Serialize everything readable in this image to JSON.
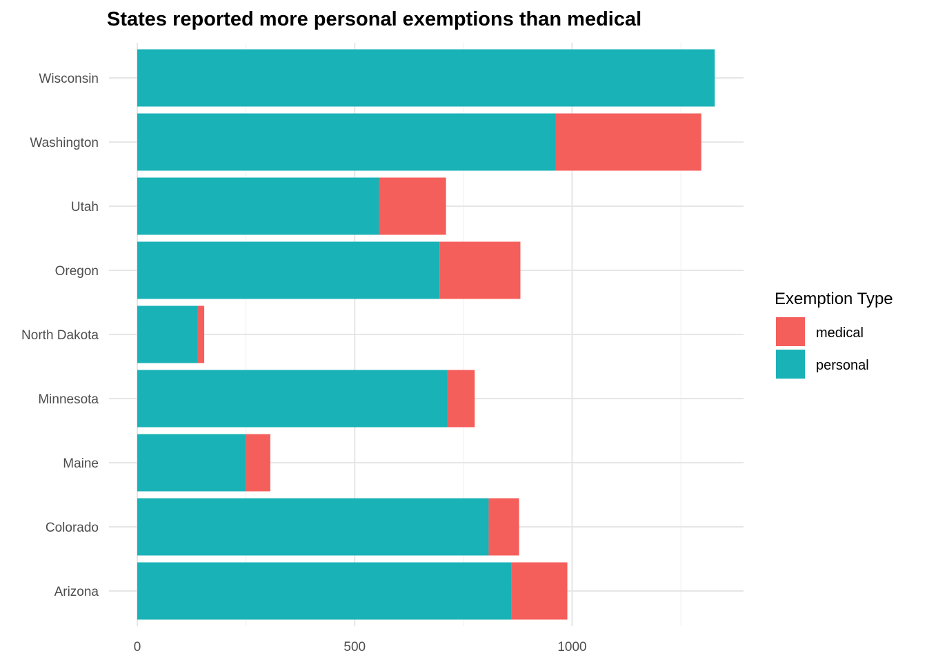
{
  "chart_data": {
    "type": "bar",
    "orientation": "horizontal",
    "stacked": true,
    "title": "States reported more personal exemptions than medical",
    "xlabel": "",
    "ylabel": "",
    "categories": [
      "Wisconsin",
      "Washington",
      "Utah",
      "Oregon",
      "North Dakota",
      "Minnesota",
      "Maine",
      "Colorado",
      "Arizona"
    ],
    "series": [
      {
        "name": "personal",
        "color": "#19b2b7",
        "values": [
          1328,
          962,
          556,
          695,
          138,
          713,
          250,
          808,
          861
        ]
      },
      {
        "name": "medical",
        "color": "#f45f5c",
        "values": [
          0,
          335,
          154,
          186,
          16,
          63,
          56,
          70,
          128
        ]
      }
    ],
    "xlim": [
      0,
      1395
    ],
    "xticks": [
      0,
      500,
      1000
    ],
    "xtick_labels": [
      "0",
      "500",
      "1000"
    ],
    "grid": true,
    "legend": {
      "title": "Exemption Type",
      "position": "right",
      "entries": [
        {
          "label": "medical",
          "color": "#f45f5c"
        },
        {
          "label": "personal",
          "color": "#19b2b7"
        }
      ]
    }
  }
}
